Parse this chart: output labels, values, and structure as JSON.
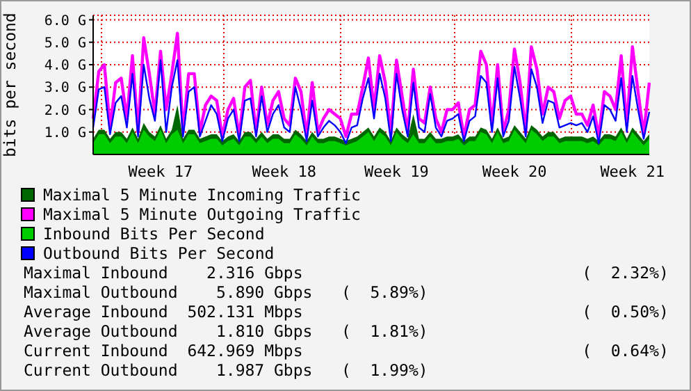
{
  "chart_data": {
    "type": "line",
    "ylabel": "bits per second",
    "categories": [
      null,
      null,
      null,
      null,
      null,
      null,
      null,
      null,
      null,
      null,
      null,
      null,
      "Week 17",
      null,
      null,
      null,
      null,
      null,
      null,
      null,
      null,
      null,
      null,
      null,
      null,
      null,
      null,
      null,
      null,
      null,
      null,
      null,
      null,
      null,
      "Week 18",
      null,
      null,
      null,
      null,
      null,
      null,
      null,
      null,
      null,
      null,
      null,
      null,
      null,
      null,
      null,
      null,
      null,
      null,
      null,
      "Week 19",
      null,
      null,
      null,
      null,
      null,
      null,
      null,
      null,
      null,
      null,
      null,
      null,
      null,
      null,
      null,
      null,
      null,
      null,
      null,
      null,
      "Week 20",
      null,
      null,
      null,
      null,
      null,
      null,
      null,
      null,
      null,
      null,
      null,
      null,
      null,
      null,
      null,
      null,
      null,
      null,
      null,
      null,
      "Week 21",
      null,
      null,
      null
    ],
    "series": [
      {
        "name": "Maximal 5 Minute Incoming Traffic",
        "type": "area",
        "color": "#006600",
        "values": [
          0.7,
          1.1,
          1.1,
          0.7,
          1.0,
          1.0,
          0.7,
          1.2,
          0.7,
          1.4,
          1.0,
          0.8,
          1.3,
          0.7,
          1.1,
          2.2,
          0.7,
          1.1,
          1.1,
          0.7,
          0.8,
          0.9,
          0.9,
          0.6,
          0.8,
          0.9,
          0.6,
          1.0,
          1.0,
          0.7,
          1.0,
          0.7,
          0.9,
          0.9,
          0.7,
          0.7,
          1.1,
          0.9,
          0.6,
          1.0,
          0.7,
          0.7,
          0.8,
          0.8,
          0.7,
          0.6,
          0.7,
          0.8,
          1.0,
          1.2,
          0.8,
          1.2,
          1.0,
          0.6,
          1.2,
          0.9,
          0.7,
          1.8,
          0.7,
          0.7,
          1.0,
          0.7,
          0.7,
          0.8,
          0.8,
          0.9,
          0.6,
          0.8,
          0.8,
          1.2,
          1.1,
          0.7,
          1.2,
          0.7,
          0.8,
          1.3,
          1.0,
          0.7,
          1.3,
          1.1,
          0.8,
          1.0,
          1.0,
          0.7,
          0.8,
          0.8,
          0.8,
          0.8,
          0.7,
          0.8,
          0.6,
          0.9,
          0.9,
          0.8,
          1.2,
          0.7,
          1.2,
          0.9,
          0.6,
          0.9
        ]
      },
      {
        "name": "Maximal 5 Minute Outgoing Traffic",
        "color": "#ff00ff",
        "values": [
          1.6,
          3.7,
          4.0,
          1.2,
          3.2,
          3.4,
          1.6,
          4.4,
          1.0,
          5.2,
          3.6,
          1.8,
          4.6,
          2.0,
          3.6,
          5.4,
          1.0,
          3.6,
          3.6,
          1.0,
          2.2,
          2.6,
          2.4,
          0.8,
          2.0,
          2.5,
          0.8,
          3.0,
          3.3,
          1.0,
          3.0,
          1.3,
          2.4,
          2.8,
          1.6,
          1.3,
          3.4,
          2.8,
          0.8,
          3.2,
          1.0,
          1.6,
          2.0,
          1.8,
          1.6,
          0.8,
          1.8,
          1.8,
          3.0,
          4.3,
          2.0,
          4.4,
          3.2,
          0.9,
          4.2,
          2.6,
          1.0,
          3.8,
          1.6,
          1.4,
          3.0,
          1.6,
          1.0,
          2.0,
          2.0,
          2.3,
          0.8,
          2.0,
          2.2,
          4.6,
          4.0,
          1.3,
          4.0,
          1.0,
          2.0,
          4.7,
          3.2,
          1.0,
          4.8,
          3.8,
          1.8,
          3.0,
          2.8,
          1.6,
          2.4,
          2.6,
          1.8,
          1.8,
          1.3,
          2.2,
          0.8,
          2.8,
          2.6,
          2.0,
          4.4,
          1.3,
          4.8,
          2.8,
          0.9,
          3.2
        ]
      },
      {
        "name": "Inbound Bits Per Second",
        "type": "area",
        "color": "#00cc00",
        "values": [
          0.5,
          0.9,
          0.9,
          0.5,
          0.8,
          0.8,
          0.5,
          1.0,
          0.5,
          1.1,
          0.8,
          0.6,
          1.1,
          0.5,
          0.9,
          1.1,
          0.5,
          0.9,
          0.9,
          0.5,
          0.6,
          0.7,
          0.7,
          0.4,
          0.6,
          0.7,
          0.4,
          0.8,
          0.8,
          0.5,
          0.8,
          0.5,
          0.7,
          0.7,
          0.5,
          0.5,
          0.9,
          0.7,
          0.4,
          0.8,
          0.5,
          0.5,
          0.6,
          0.6,
          0.5,
          0.4,
          0.5,
          0.6,
          0.8,
          1.0,
          0.6,
          1.0,
          0.8,
          0.4,
          1.0,
          0.7,
          0.5,
          0.9,
          0.5,
          0.5,
          0.8,
          0.5,
          0.5,
          0.6,
          0.6,
          0.7,
          0.4,
          0.6,
          0.6,
          1.0,
          0.9,
          0.5,
          1.0,
          0.5,
          0.6,
          1.1,
          0.8,
          0.5,
          1.1,
          0.9,
          0.6,
          0.8,
          0.8,
          0.5,
          0.6,
          0.6,
          0.6,
          0.6,
          0.5,
          0.6,
          0.4,
          0.7,
          0.7,
          0.6,
          1.0,
          0.5,
          1.0,
          0.7,
          0.4,
          0.7
        ]
      },
      {
        "name": "Outbound Bits Per Second",
        "color": "#0000ff",
        "values": [
          1.2,
          2.9,
          3.0,
          0.9,
          2.3,
          2.6,
          1.2,
          3.6,
          0.8,
          4.0,
          2.5,
          1.5,
          4.2,
          1.0,
          3.0,
          4.2,
          0.8,
          2.8,
          3.0,
          0.8,
          1.5,
          2.2,
          1.8,
          0.6,
          1.6,
          2.0,
          0.6,
          2.4,
          2.5,
          0.8,
          2.6,
          1.0,
          1.8,
          2.2,
          1.2,
          1.0,
          3.0,
          2.0,
          0.6,
          2.4,
          0.8,
          1.2,
          1.5,
          1.3,
          1.0,
          0.5,
          1.2,
          1.3,
          2.5,
          3.4,
          1.6,
          3.6,
          2.5,
          0.6,
          3.6,
          2.0,
          0.8,
          3.2,
          1.2,
          1.0,
          2.7,
          1.2,
          0.8,
          1.5,
          1.6,
          1.8,
          0.6,
          1.5,
          1.7,
          3.5,
          3.2,
          1.0,
          3.4,
          0.8,
          1.5,
          3.9,
          2.5,
          0.8,
          3.8,
          3.0,
          1.4,
          2.4,
          2.3,
          1.2,
          1.3,
          1.4,
          1.3,
          1.4,
          1.0,
          1.7,
          0.5,
          2.2,
          2.0,
          1.5,
          3.4,
          1.0,
          3.5,
          2.0,
          0.7,
          1.9
        ]
      }
    ],
    "ylim": [
      0,
      6.2
    ],
    "yticks": [
      {
        "value": 1,
        "label": "1.0 G"
      },
      {
        "value": 2,
        "label": "2.0 G"
      },
      {
        "value": 3,
        "label": "3.0 G"
      },
      {
        "value": 4,
        "label": "4.0 G"
      },
      {
        "value": 5,
        "label": "5.0 G"
      },
      {
        "value": 6,
        "label": "6.0 G"
      }
    ],
    "grid": true,
    "legend": "bottom",
    "marker": "none",
    "annotations": [
      "Maximal Inbound    2.316 Gbps                             (  2.32%)",
      "Maximal Outbound    5.890 Gbps   (  5.89%)",
      "Average Inbound  502.131 Mbps                             (  0.50%)",
      "Average Outbound    1.810 Gbps   (  1.81%)",
      "Current Inbound  642.969 Mbps                             (  0.64%)",
      "Current Outbound    1.987 Gbps   (  1.99%)"
    ]
  }
}
